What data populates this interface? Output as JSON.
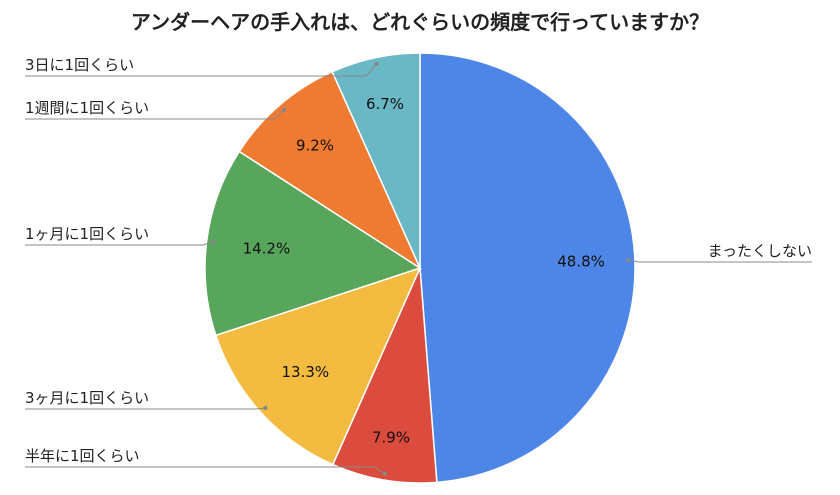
{
  "chart_data": {
    "type": "pie",
    "title": "アンダーヘアの手入れは、どれぐらいの頻度で行っていますか？",
    "categories": [
      "まったくしない",
      "半年に1回くらい",
      "3ヶ月に1回くらい",
      "1ヶ月に1回くらい",
      "1週間に1回くらい",
      "3日に1回くらい"
    ],
    "values": [
      48.8,
      7.9,
      13.3,
      14.2,
      9.2,
      6.7
    ],
    "value_labels": [
      "48.8%",
      "7.9%",
      "13.3%",
      "14.2%",
      "9.2%",
      "6.7%"
    ],
    "colors": [
      "#4e86e8",
      "#db4b3e",
      "#f3bc41",
      "#58a65c",
      "#ef7a32",
      "#6ab8c6"
    ],
    "start": "12 o'clock",
    "direction": "clockwise",
    "legend": "none (leader-line labels)"
  }
}
